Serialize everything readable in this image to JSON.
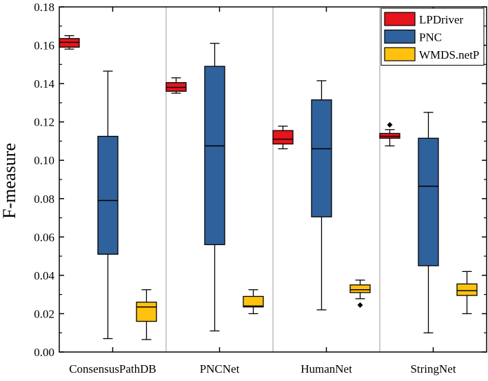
{
  "chart_data": {
    "type": "box",
    "ylabel": "F-measure",
    "xlabel": "",
    "ylim": [
      0,
      0.18
    ],
    "yticks": [
      0.0,
      0.02,
      0.04,
      0.06,
      0.08,
      0.1,
      0.12,
      0.14,
      0.16,
      0.18
    ],
    "ytick_labels": [
      "0.00",
      "0.02",
      "0.04",
      "0.06",
      "0.08",
      "0.10",
      "0.12",
      "0.14",
      "0.16",
      "0.18"
    ],
    "categories": [
      "ConsensusPathDB",
      "PNCNet",
      "HumanNet",
      "StringNet"
    ],
    "legend_position": "top-right",
    "grid": false,
    "group_dividers": true,
    "series": [
      {
        "name": "LPDriver",
        "color": "#e8141c",
        "boxes": [
          {
            "whislo": 0.158,
            "q1": 0.159,
            "med": 0.1615,
            "q3": 0.1635,
            "whishi": 0.165,
            "fliers": []
          },
          {
            "whislo": 0.135,
            "q1": 0.136,
            "med": 0.138,
            "q3": 0.1405,
            "whishi": 0.143,
            "fliers": []
          },
          {
            "whislo": 0.106,
            "q1": 0.1085,
            "med": 0.111,
            "q3": 0.1155,
            "whishi": 0.1178,
            "fliers": []
          },
          {
            "whislo": 0.1075,
            "q1": 0.1115,
            "med": 0.1125,
            "q3": 0.114,
            "whishi": 0.116,
            "fliers": [
              0.1185
            ]
          }
        ]
      },
      {
        "name": "PNC",
        "color": "#2f619c",
        "boxes": [
          {
            "whislo": 0.007,
            "q1": 0.051,
            "med": 0.079,
            "q3": 0.1125,
            "whishi": 0.1465,
            "fliers": []
          },
          {
            "whislo": 0.011,
            "q1": 0.056,
            "med": 0.1075,
            "q3": 0.149,
            "whishi": 0.161,
            "fliers": []
          },
          {
            "whislo": 0.022,
            "q1": 0.0705,
            "med": 0.106,
            "q3": 0.1315,
            "whishi": 0.1415,
            "fliers": []
          },
          {
            "whislo": 0.01,
            "q1": 0.045,
            "med": 0.0865,
            "q3": 0.1115,
            "whishi": 0.125,
            "fliers": []
          }
        ]
      },
      {
        "name": "WMDS.netP",
        "color": "#ffc20e",
        "boxes": [
          {
            "whislo": 0.0065,
            "q1": 0.016,
            "med": 0.0235,
            "q3": 0.026,
            "whishi": 0.0325,
            "fliers": []
          },
          {
            "whislo": 0.02,
            "q1": 0.0235,
            "med": 0.024,
            "q3": 0.029,
            "whishi": 0.0325,
            "fliers": []
          },
          {
            "whislo": 0.0278,
            "q1": 0.031,
            "med": 0.0325,
            "q3": 0.035,
            "whishi": 0.0375,
            "fliers": [
              0.0245
            ]
          },
          {
            "whislo": 0.02,
            "q1": 0.0295,
            "med": 0.032,
            "q3": 0.0355,
            "whishi": 0.042,
            "fliers": []
          }
        ]
      }
    ]
  }
}
